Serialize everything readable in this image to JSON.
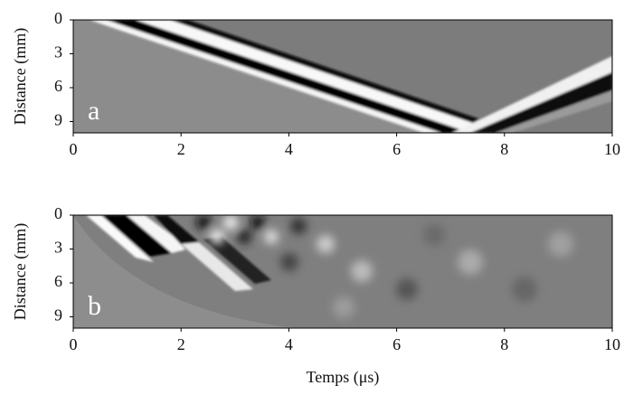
{
  "chart_data": [
    {
      "type": "image",
      "panel_label": "a",
      "ylabel": "Distance (mm)",
      "xlim": [
        0,
        10
      ],
      "xticks": [
        0,
        2,
        4,
        6,
        8,
        10
      ],
      "ylim": [
        0,
        10
      ],
      "yticks": [
        0,
        3,
        6,
        9
      ]
    },
    {
      "type": "image",
      "panel_label": "b",
      "ylabel": "Distance (mm)",
      "xlabel": "Temps (μs)",
      "xlim": [
        0,
        10
      ],
      "xticks": [
        0,
        2,
        4,
        6,
        8,
        10
      ],
      "ylim": [
        0,
        10
      ],
      "yticks": [
        0,
        3,
        6,
        9
      ]
    }
  ]
}
